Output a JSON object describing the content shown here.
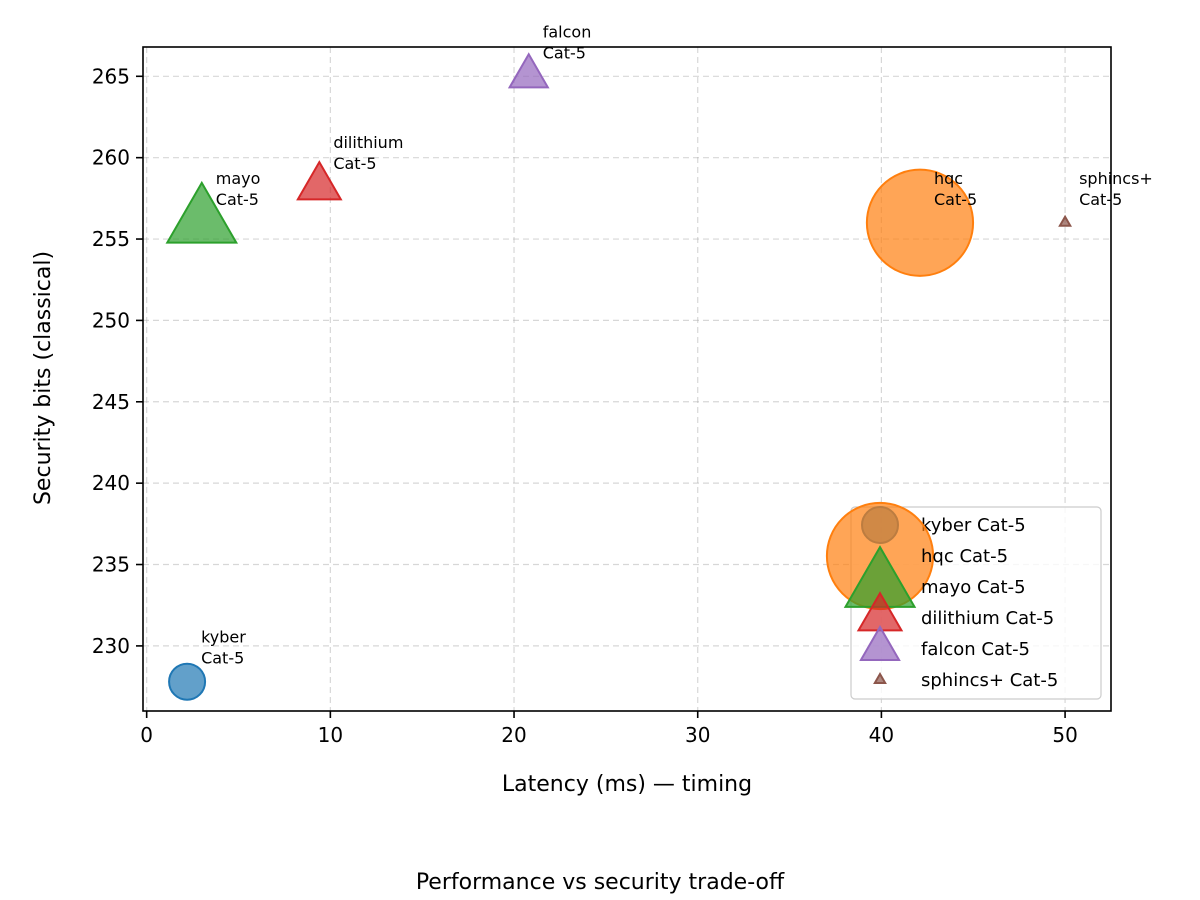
{
  "chart_data": {
    "type": "scatter",
    "title": "",
    "caption": "Performance vs security trade-off",
    "xlabel": "Latency (ms) — timing",
    "ylabel": "Security bits (classical)",
    "xlim": [
      -0.2,
      52.5
    ],
    "ylim": [
      226,
      266.8
    ],
    "xticks": [
      0,
      10,
      20,
      30,
      40,
      50
    ],
    "yticks": [
      230,
      235,
      240,
      245,
      250,
      255,
      260,
      265
    ],
    "grid": true,
    "legend_position": "lower-right",
    "series": [
      {
        "name": "kyber Cat-5",
        "algorithm": "kyber",
        "category": "Cat-5",
        "marker": "circle",
        "color": "#1f77b4",
        "x": 2.2,
        "y": 227.8,
        "size": 1.0
      },
      {
        "name": "hqc Cat-5",
        "algorithm": "hqc",
        "category": "Cat-5",
        "marker": "circle",
        "color": "#ff7f0e",
        "x": 42.1,
        "y": 256.0,
        "size": 8.7
      },
      {
        "name": "mayo Cat-5",
        "algorithm": "mayo",
        "category": "Cat-5",
        "marker": "triangle",
        "color": "#2ca02c",
        "x": 3.0,
        "y": 256.0,
        "size": 4.9
      },
      {
        "name": "dilithium Cat-5",
        "algorithm": "dilithium",
        "category": "Cat-5",
        "marker": "triangle",
        "color": "#d62728",
        "x": 9.4,
        "y": 258.2,
        "size": 1.9
      },
      {
        "name": "falcon Cat-5",
        "algorithm": "falcon",
        "category": "Cat-5",
        "marker": "triangle",
        "color": "#9467bd",
        "x": 20.8,
        "y": 265.0,
        "size": 1.5
      },
      {
        "name": "sphincs+ Cat-5",
        "algorithm": "sphincs+",
        "category": "Cat-5",
        "marker": "triangle",
        "color": "#8c564b",
        "x": 50.0,
        "y": 256.0,
        "size": 0.1
      }
    ]
  }
}
